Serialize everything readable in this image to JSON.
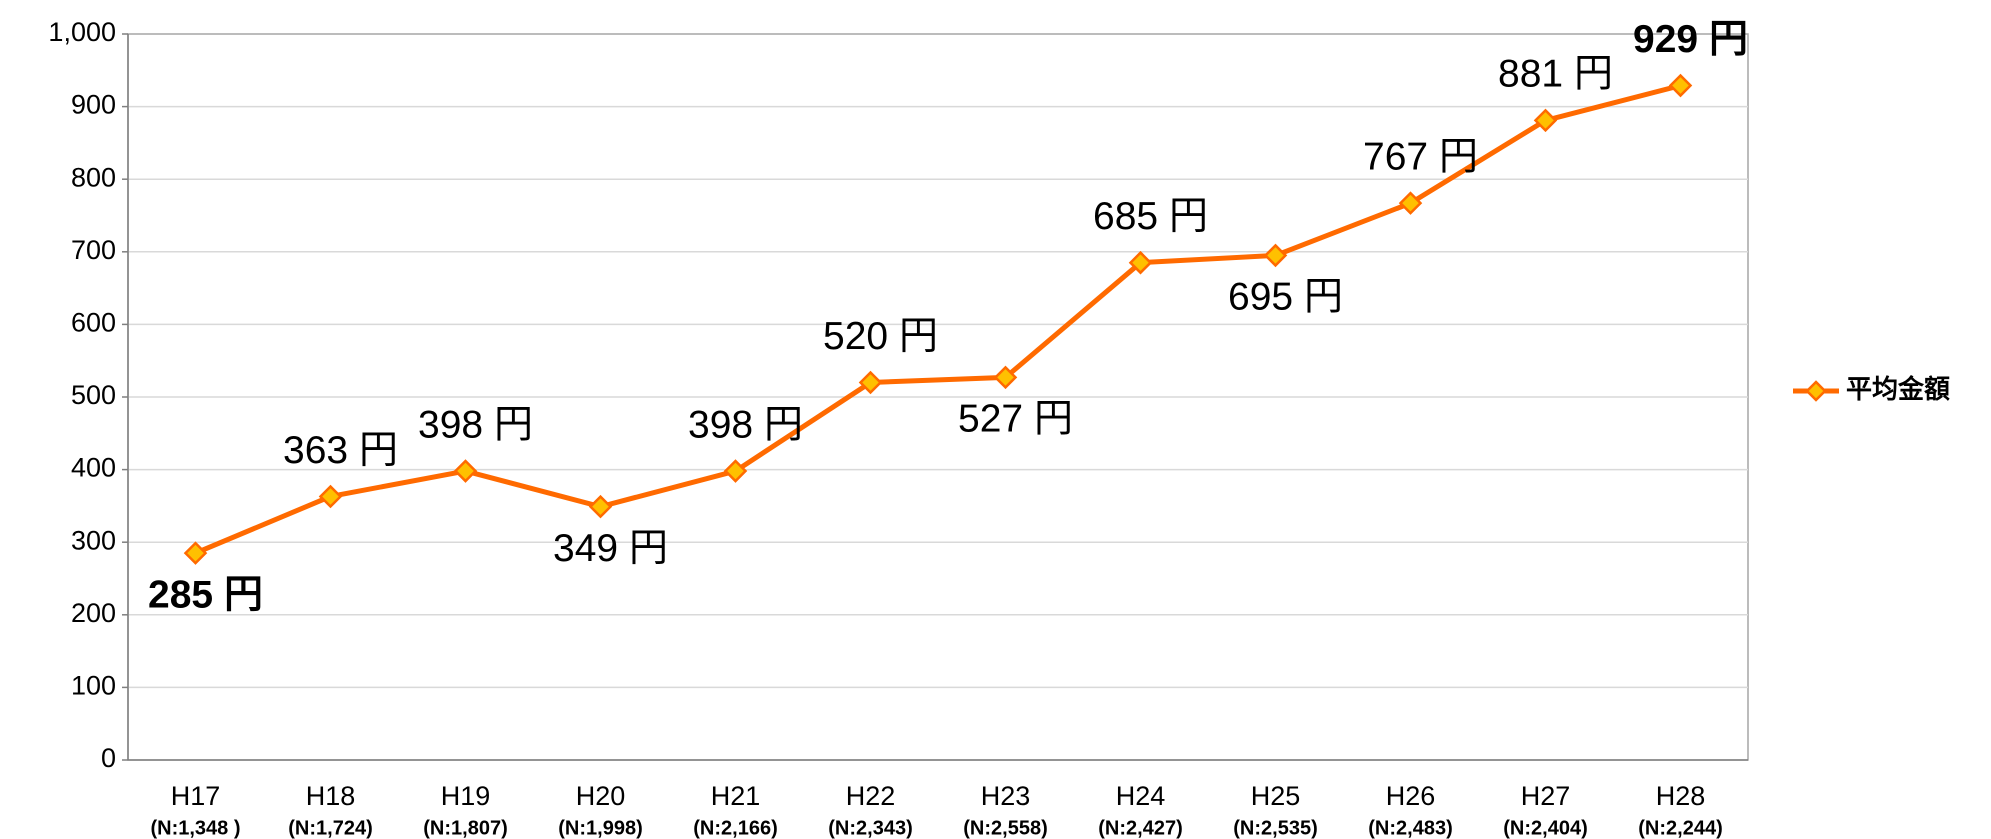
{
  "chart_data": {
    "type": "line",
    "categories": [
      "H17",
      "H18",
      "H19",
      "H20",
      "H21",
      "H22",
      "H23",
      "H24",
      "H25",
      "H26",
      "H27",
      "H28"
    ],
    "category_notes": [
      "(N:1,348 )",
      "(N:1,724)",
      "(N:1,807)",
      "(N:1,998)",
      "(N:2,166)",
      "(N:2,343)",
      "(N:2,558)",
      "(N:2,427)",
      "(N:2,535)",
      "(N:2,483)",
      "(N:2,404)",
      "(N:2,244)"
    ],
    "series": [
      {
        "name": "平均金額",
        "color": "#ff6a00",
        "marker_color": "#ffc000",
        "values": [
          285,
          363,
          398,
          349,
          398,
          520,
          527,
          685,
          695,
          767,
          881,
          929
        ],
        "value_labels": [
          "285 円",
          "363 円",
          "398 円",
          "349 円",
          "398 円",
          "520 円",
          "527 円",
          "685 円",
          "695 円",
          "767 円",
          "881 円",
          "929 円"
        ],
        "value_label_colors": [
          "#ff0000",
          "#000000",
          "#000000",
          "#000000",
          "#000000",
          "#000000",
          "#000000",
          "#000000",
          "#000000",
          "#000000",
          "#000000",
          "#ff0000"
        ],
        "value_label_positions": [
          "below",
          "above",
          "above",
          "below",
          "above",
          "above",
          "below",
          "above",
          "below",
          "above",
          "above",
          "above"
        ]
      }
    ],
    "ylim": [
      0,
      1000
    ],
    "yticks": [
      0,
      100,
      200,
      300,
      400,
      500,
      600,
      700,
      800,
      900,
      {
        "value": 1000,
        "label": "1,000"
      }
    ],
    "grid": true,
    "legend": "right"
  }
}
